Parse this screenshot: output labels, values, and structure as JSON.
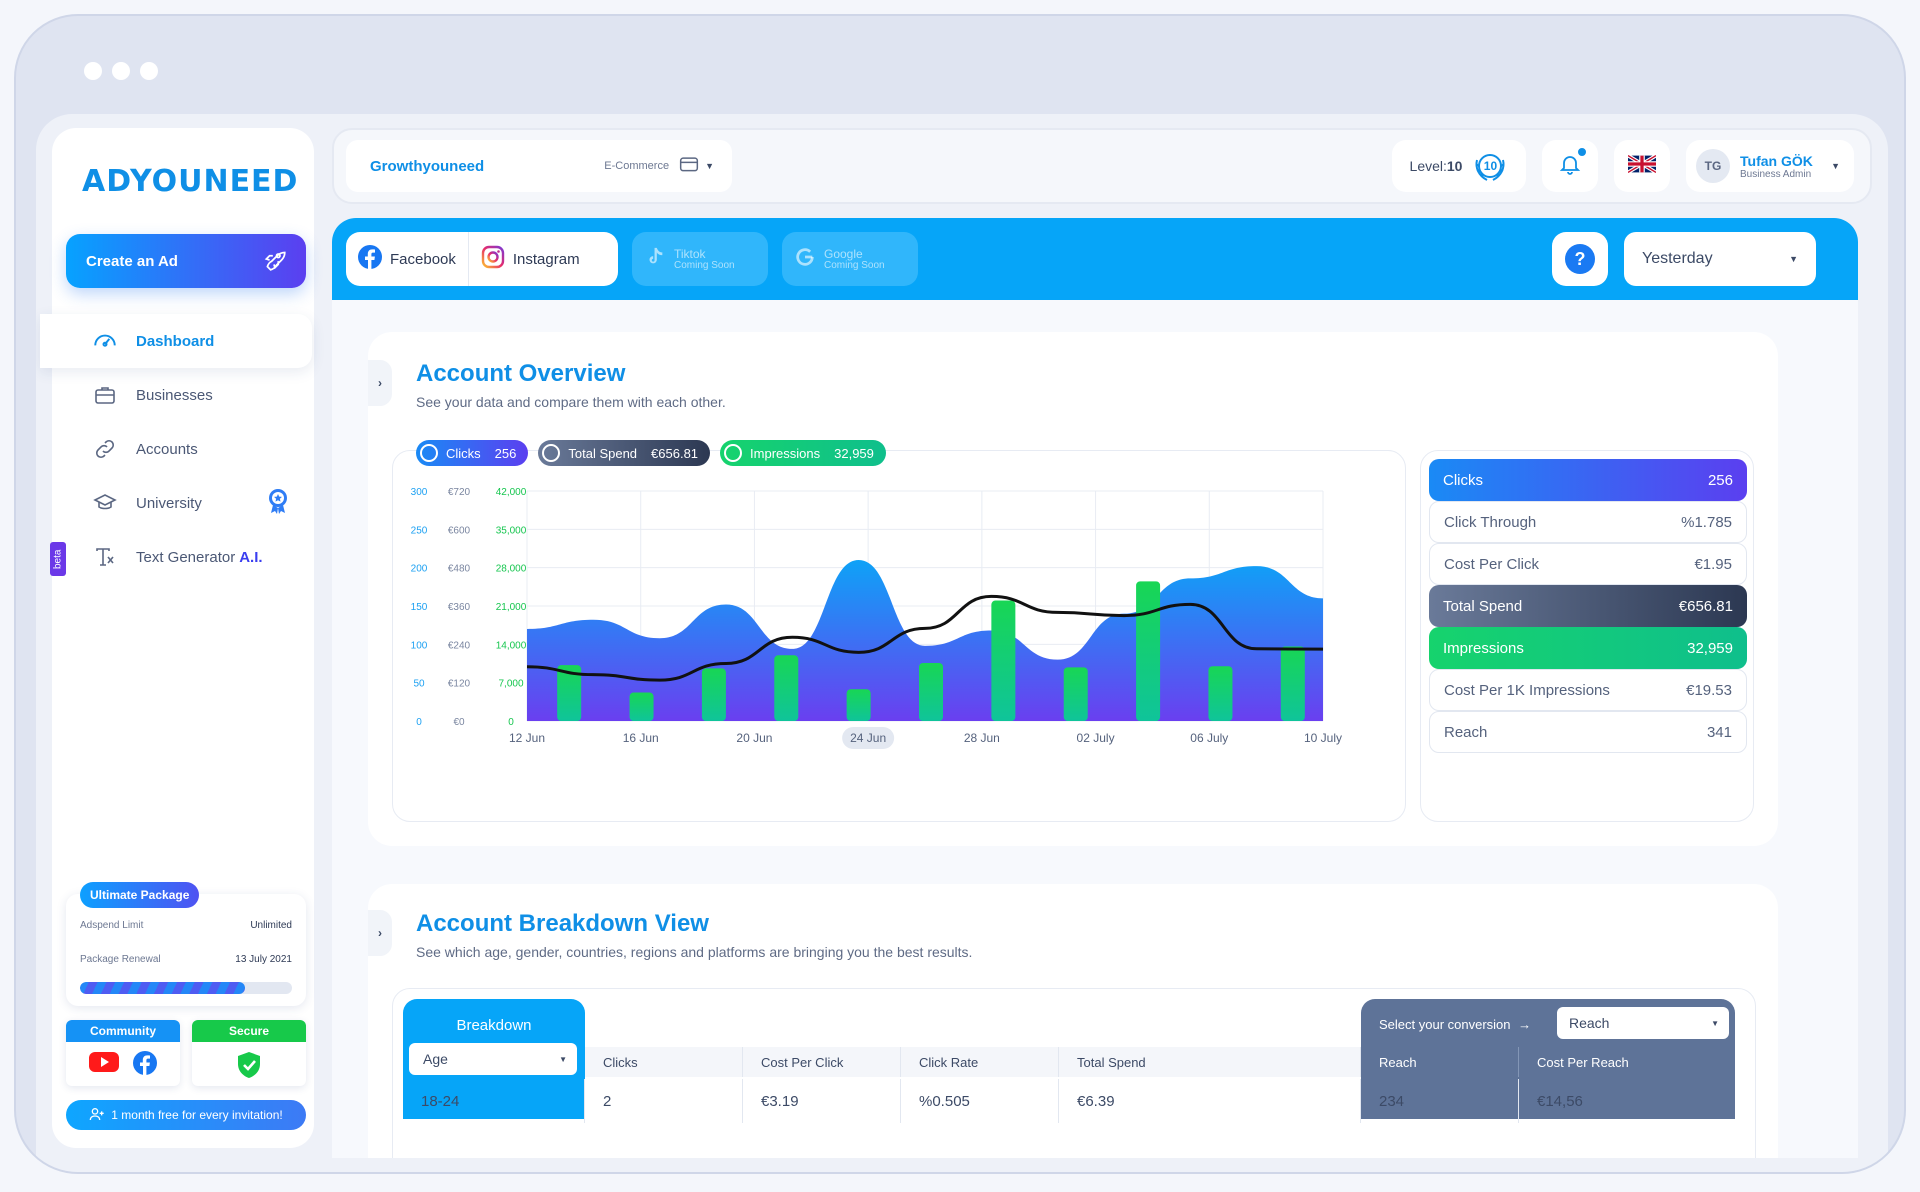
{
  "brand": {
    "logo": "ADYOUNEED"
  },
  "sidebar": {
    "create_button": "Create an Ad",
    "items": [
      {
        "label": "Dashboard",
        "icon": "gauge-icon",
        "active": true
      },
      {
        "label": "Businesses",
        "icon": "briefcase-icon"
      },
      {
        "label": "Accounts",
        "icon": "link-icon"
      },
      {
        "label": "University",
        "icon": "graduation-cap-icon",
        "badge": "award-badge-icon"
      },
      {
        "label": "Text Generator",
        "suffix": "A.I.",
        "icon": "text-tool-icon",
        "tag": "beta"
      }
    ],
    "package": {
      "tag": "Ultimate Package",
      "limit_label": "Adspend Limit",
      "limit_value": "Unlimited",
      "renewal_label": "Package Renewal",
      "renewal_value": "13 July 2021",
      "progress": 0.78
    },
    "community": "Community",
    "secure": "Secure",
    "invite": "1 month free for every invitation!"
  },
  "topbar": {
    "business_name": "Growthyouneed",
    "business_category": "E-Commerce",
    "level_label": "Level:",
    "level_value": "10",
    "level_badge": "10",
    "user_initials": "TG",
    "user_name": "Tufan GÖK",
    "user_role": "Business Admin"
  },
  "platforms": {
    "facebook": "Facebook",
    "instagram": "Instagram",
    "tiktok": "Tiktok",
    "google": "Google",
    "coming_soon": "Coming Soon",
    "date_range": "Yesterday",
    "help": "?"
  },
  "overview": {
    "title": "Account Overview",
    "subtitle": "See your data and compare them with each other.",
    "pills": [
      {
        "label": "Clicks",
        "value": "256"
      },
      {
        "label": "Total Spend",
        "value": "€656.81"
      },
      {
        "label": "Impressions",
        "value": "32,959"
      }
    ],
    "metrics": [
      {
        "label": "Clicks",
        "value": "256"
      },
      {
        "label": "Click Through",
        "value": "%1.785"
      },
      {
        "label": "Cost Per Click",
        "value": "€1.95"
      },
      {
        "label": "Total Spend",
        "value": "€656.81"
      },
      {
        "label": "Impressions",
        "value": "32,959"
      },
      {
        "label": "Cost Per 1K Impressions",
        "value": "€19.53"
      },
      {
        "label": "Reach",
        "value": "341"
      }
    ]
  },
  "chart_data": {
    "type": "bar",
    "x_ticks": [
      "12 Jun",
      "16 Jun",
      "20 Jun",
      "24 Jun",
      "28 Jun",
      "02 July",
      "06 July",
      "10 July"
    ],
    "highlighted_tick": "24 Jun",
    "y_axes": [
      {
        "ticks": [
          "300",
          "250",
          "200",
          "150",
          "100",
          "50",
          "0"
        ],
        "color": "#1da1f2",
        "ylim": [
          0,
          300
        ]
      },
      {
        "ticks": [
          "€720",
          "€600",
          "€480",
          "€360",
          "€240",
          "€120",
          "€0"
        ],
        "color": "#7a86a0",
        "ylim": [
          0,
          720
        ]
      },
      {
        "ticks": [
          "42,000",
          "35,000",
          "28,000",
          "21,000",
          "14,000",
          "7,000",
          "0"
        ],
        "color": "#16c64f",
        "ylim": [
          0,
          42000
        ]
      }
    ],
    "series": [
      {
        "name": "Clicks",
        "type": "area",
        "color": "#1f8ef7",
        "values": [
          120,
          132,
          108,
          152,
          94,
          210,
          98,
          118,
          80,
          140,
          186,
          202,
          160
        ]
      },
      {
        "name": "Total Spend",
        "type": "line",
        "color": "#111111",
        "values": [
          170,
          145,
          128,
          180,
          262,
          215,
          290,
          390,
          340,
          330,
          365,
          226,
          225
        ]
      },
      {
        "name": "Impressions",
        "type": "bar",
        "color": "#18d36a",
        "values": [
          10200,
          5200,
          9600,
          12000,
          5800,
          10600,
          22000,
          9800,
          25500,
          10000,
          13600
        ]
      }
    ],
    "grid": true
  },
  "breakdown": {
    "title": "Account Breakdown View",
    "subtitle": "See which age, gender, countries, regions and platforms are bringing you the best results.",
    "tab_title": "Breakdown",
    "breakdown_by": "Age",
    "conversion_label": "Select your conversion",
    "conversion_value": "Reach",
    "columns": [
      "Clicks",
      "Cost Per Click",
      "Click Rate",
      "Total Spend",
      "Reach",
      "Cost Per Reach"
    ],
    "rows": [
      {
        "group": "18-24",
        "cells": [
          "2",
          "€3.19",
          "%0.505",
          "€6.39",
          "234",
          "€14,56"
        ]
      }
    ]
  }
}
